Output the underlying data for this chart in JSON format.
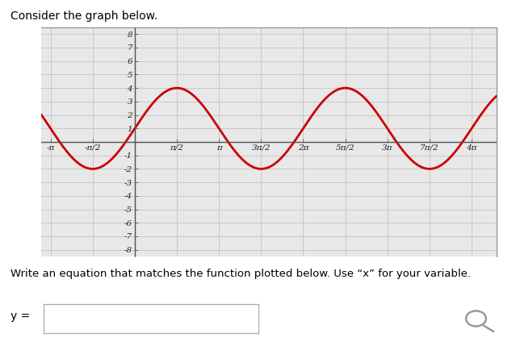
{
  "title": "Consider the graph below.",
  "xlim": [
    -3.5,
    13.5
  ],
  "ylim": [
    -8.5,
    8.5
  ],
  "amplitude": 3,
  "vertical_shift": 1,
  "frequency": 1,
  "curve_color": "#cc0000",
  "curve_linewidth": 2.0,
  "grid_color": "#c8c8c8",
  "background_color": "#ffffff",
  "plot_bg_color": "#e8e8e8",
  "x_ticks_pi": [
    -1,
    -0.5,
    0.5,
    1,
    1.5,
    2,
    2.5,
    3,
    3.5,
    4
  ],
  "x_tick_labels": [
    "-π",
    "-π/2",
    "π/2",
    "π",
    "3π/2",
    "2π",
    "5π/2",
    "3π",
    "7π/2",
    "4π"
  ],
  "y_ticks": [
    -8,
    -7,
    -6,
    -5,
    -4,
    -3,
    -2,
    -1,
    1,
    2,
    3,
    4,
    5,
    6,
    7,
    8
  ],
  "question_text": "Write an equation that matches the function plotted below. Use “x” for your variable.",
  "answer_label": "y ="
}
